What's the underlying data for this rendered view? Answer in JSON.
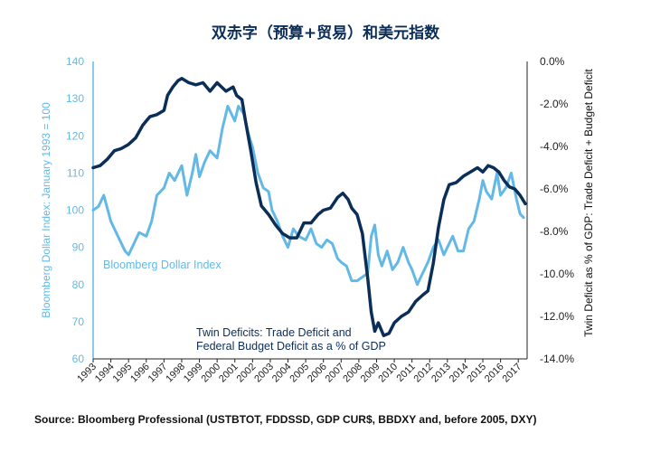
{
  "title": "双赤字（预算+贸易）和美元指数",
  "source": "Source: Bloomberg Professional (USTBTOT, FDDSSD, GDP CUR$, BBDXY and, before 2005, DXY)",
  "colors": {
    "dollar": "#63b9e6",
    "deficit": "#0b2e59",
    "left_axis": "#63b9e6",
    "text": "#111111"
  },
  "chart_data": {
    "type": "line",
    "title": "双赤字（预算+贸易）和美元指数",
    "ylabel_left": "Bloomberg Dollar Index: January 1993 = 100",
    "ylabel_right": "Twin Deficit as % of GDP: Trade Deficit + Budget Deficit",
    "xlabel": "",
    "x_ticks": [
      "1993",
      "1994",
      "1995",
      "1996",
      "1997",
      "1998",
      "1999",
      "2000",
      "2001",
      "2002",
      "2003",
      "2004",
      "2005",
      "2006",
      "2007",
      "2008",
      "2009",
      "2010",
      "2011",
      "2012",
      "2013",
      "2014",
      "2015",
      "2016",
      "2017"
    ],
    "y_left_ticks": [
      "60",
      "70",
      "80",
      "90",
      "100",
      "110",
      "120",
      "130",
      "140"
    ],
    "y_right_ticks": [
      "-14.0%",
      "-12.0%",
      "-10.0%",
      "-8.0%",
      "-6.0%",
      "-4.0%",
      "-2.0%",
      "0.0%"
    ],
    "ylim_left": [
      60,
      140
    ],
    "ylim_right": [
      -14,
      0
    ],
    "xlim": [
      1993,
      2017.5
    ],
    "grid": false,
    "series": [
      {
        "name": "Bloomberg Dollar Index",
        "axis": "left",
        "x": [
          1993.0,
          1993.3,
          1993.6,
          1994.0,
          1994.4,
          1994.8,
          1995.0,
          1995.3,
          1995.6,
          1996.0,
          1996.3,
          1996.6,
          1997.0,
          1997.3,
          1997.6,
          1998.0,
          1998.3,
          1998.6,
          1998.8,
          1999.0,
          1999.3,
          1999.6,
          2000.0,
          2000.3,
          2000.6,
          2001.0,
          2001.2,
          2001.5,
          2001.8,
          2002.0,
          2002.3,
          2002.6,
          2002.9,
          2003.1,
          2003.4,
          2003.7,
          2004.0,
          2004.3,
          2004.6,
          2005.0,
          2005.3,
          2005.6,
          2005.9,
          2006.2,
          2006.5,
          2006.8,
          2007.0,
          2007.3,
          2007.6,
          2007.9,
          2008.2,
          2008.5,
          2008.7,
          2008.9,
          2009.1,
          2009.3,
          2009.6,
          2009.9,
          2010.2,
          2010.5,
          2010.8,
          2011.0,
          2011.3,
          2011.6,
          2011.9,
          2012.2,
          2012.5,
          2012.8,
          2013.0,
          2013.3,
          2013.6,
          2013.9,
          2014.2,
          2014.5,
          2014.8,
          2015.0,
          2015.2,
          2015.5,
          2015.8,
          2016.0,
          2016.3,
          2016.6,
          2016.9,
          2017.1,
          2017.3
        ],
        "values": [
          100,
          101,
          104,
          97,
          93,
          89,
          88,
          91,
          94,
          93,
          97,
          104,
          106,
          110,
          108,
          112,
          104,
          110,
          115,
          109,
          113,
          116,
          114,
          122,
          128,
          124,
          128,
          126,
          120,
          117,
          110,
          106,
          105,
          100,
          97,
          93,
          90,
          95,
          93,
          92,
          95,
          91,
          90,
          92,
          91,
          87,
          86,
          85,
          81,
          81,
          82,
          83,
          93,
          96,
          88,
          85,
          89,
          84,
          86,
          90,
          86,
          84,
          80,
          83,
          86,
          90,
          92,
          88,
          90,
          93,
          89,
          89,
          95,
          97,
          103,
          108,
          105,
          103,
          110,
          104,
          106,
          110,
          103,
          99,
          98
        ]
      },
      {
        "name": "Twin Deficits: Trade Deficit and Federal Budget Deficit as a % of GDP",
        "axis": "right",
        "x": [
          1993.0,
          1993.4,
          1993.8,
          1994.2,
          1994.6,
          1995.0,
          1995.4,
          1995.8,
          1996.2,
          1996.6,
          1997.0,
          1997.2,
          1997.5,
          1997.8,
          1998.0,
          1998.4,
          1998.8,
          1999.2,
          1999.6,
          2000.0,
          2000.5,
          2000.9,
          2001.1,
          2001.4,
          2001.6,
          2001.9,
          2002.2,
          2002.5,
          2002.9,
          2003.3,
          2003.7,
          2004.1,
          2004.5,
          2004.9,
          2005.3,
          2005.7,
          2006.0,
          2006.4,
          2006.8,
          2007.1,
          2007.4,
          2007.6,
          2007.9,
          2008.2,
          2008.5,
          2008.7,
          2008.9,
          2009.1,
          2009.4,
          2009.7,
          2010.0,
          2010.4,
          2010.8,
          2011.2,
          2011.6,
          2011.9,
          2012.2,
          2012.5,
          2012.8,
          2013.1,
          2013.5,
          2013.9,
          2014.3,
          2014.7,
          2015.0,
          2015.3,
          2015.6,
          2015.9,
          2016.2,
          2016.5,
          2016.8,
          2017.1,
          2017.4
        ],
        "values": [
          -5.0,
          -4.9,
          -4.6,
          -4.2,
          -4.1,
          -3.9,
          -3.6,
          -3.0,
          -2.6,
          -2.5,
          -2.3,
          -1.6,
          -1.2,
          -0.9,
          -0.8,
          -1.0,
          -1.1,
          -1.0,
          -1.4,
          -1.0,
          -1.4,
          -1.2,
          -1.6,
          -1.8,
          -2.8,
          -4.2,
          -5.7,
          -6.8,
          -7.2,
          -7.7,
          -8.1,
          -8.3,
          -8.3,
          -7.6,
          -7.6,
          -7.2,
          -7.0,
          -6.9,
          -6.4,
          -6.2,
          -6.5,
          -6.9,
          -7.2,
          -8.1,
          -10.2,
          -11.8,
          -12.7,
          -12.3,
          -12.9,
          -12.8,
          -12.3,
          -12.0,
          -11.8,
          -11.3,
          -11.0,
          -10.8,
          -9.5,
          -7.8,
          -6.5,
          -5.8,
          -5.7,
          -5.4,
          -5.2,
          -5.0,
          -5.2,
          -4.9,
          -5.0,
          -5.2,
          -5.6,
          -5.9,
          -6.0,
          -6.3,
          -6.7
        ]
      }
    ],
    "annotations": [
      {
        "text": "Bloomberg Dollar Index",
        "series": 0
      },
      {
        "text": "Twin Deficits: Trade Deficit and",
        "series": 1
      },
      {
        "text": "Federal Budget Deficit as a % of GDP",
        "series": 1
      }
    ]
  }
}
